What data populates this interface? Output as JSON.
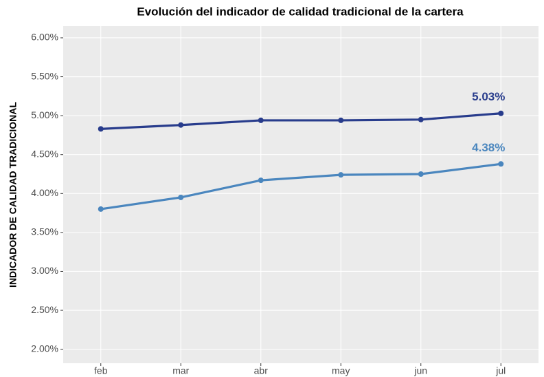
{
  "chart_data": {
    "type": "line",
    "title": "Evolución del indicador de calidad tradicional de la cartera",
    "y_label": "INDICADOR DE CALIDAD TRADICIONAL",
    "categories": [
      "feb",
      "mar",
      "abr",
      "may",
      "jun",
      "jul"
    ],
    "series": [
      {
        "color": "#283c8c",
        "values": [
          4.83,
          4.88,
          4.94,
          4.94,
          4.95,
          5.03
        ],
        "value_labels": [
          null,
          null,
          null,
          null,
          null,
          "5.03%"
        ]
      },
      {
        "color": "#4a86be",
        "values": [
          3.8,
          3.95,
          4.17,
          4.24,
          4.25,
          4.38
        ],
        "value_labels": [
          null,
          null,
          null,
          null,
          null,
          "4.38%"
        ]
      }
    ],
    "ylim": [
      1.82,
      6.15
    ],
    "yticks": [
      {
        "value": 2,
        "label": "2.00%"
      },
      {
        "value": 2.5,
        "label": "2.50%"
      },
      {
        "value": 3,
        "label": "3.00%"
      },
      {
        "value": 3.5,
        "label": "3.50%"
      },
      {
        "value": 4,
        "label": "4.00%"
      },
      {
        "value": 4.5,
        "label": "4.50%"
      },
      {
        "value": 5,
        "label": "5.00%"
      },
      {
        "value": 5.5,
        "label": "5.50%"
      },
      {
        "value": 6,
        "label": "6.00%"
      }
    ],
    "grid": true
  }
}
